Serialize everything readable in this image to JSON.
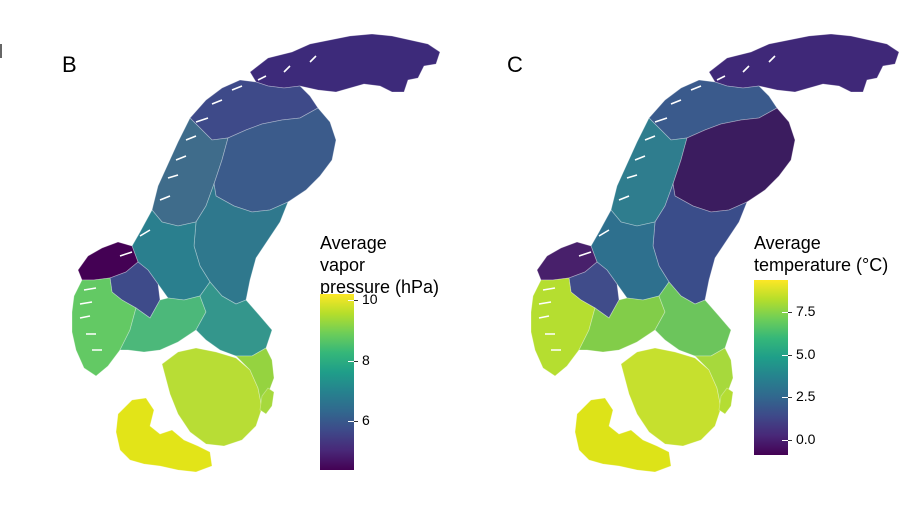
{
  "panels": [
    {
      "letter": "B",
      "legend_title_lines": [
        "Average",
        "vapor",
        "pressure (hPa)"
      ],
      "legend_ticks": [
        "10",
        "8",
        "6"
      ],
      "legend_tick_values": [
        10,
        8,
        6
      ],
      "scale_range": [
        4.4,
        10.2
      ],
      "region_colors": {
        "finnmark": "#3d2a7a",
        "troms": "#3e4a89",
        "nordland": "#3f6c8b",
        "north_sweden": "#3b5b8b",
        "mid_sweden": "#2f788d",
        "inner_norway": "#2a7f8e",
        "west_coast_fjord": "#440154",
        "inland_mountain": "#3e4b8a",
        "south_norway_west": "#63c964",
        "south_norway_east": "#4cb87a",
        "oslo_region": "#34968c",
        "south_sweden": "#b8dd35",
        "stockholm_region": "#95d340",
        "gotland": "#a6d93d",
        "denmark": "#e2e418"
      }
    },
    {
      "letter": "C",
      "legend_title_lines": [
        "Average",
        "temperature (°C)"
      ],
      "legend_ticks": [
        "7.5",
        "5.0",
        "2.5",
        "0.0"
      ],
      "legend_tick_values": [
        7.5,
        5.0,
        2.5,
        0.0
      ],
      "scale_range": [
        -0.9,
        9.4
      ],
      "region_colors": {
        "finnmark": "#3f2878",
        "troms": "#3a5a8c",
        "nordland": "#2f7d8e",
        "north_sweden": "#3b1c5f",
        "mid_sweden": "#3a4d8a",
        "inner_norway": "#2e708e",
        "west_coast_fjord": "#48206b",
        "inland_mountain": "#404c8a",
        "south_norway_west": "#b5de30",
        "south_norway_east": "#82cd49",
        "oslo_region": "#6cc55c",
        "south_sweden": "#c6e02e",
        "stockholm_region": "#a7d93c",
        "gotland": "#b4dd33",
        "denmark": "#dde318"
      }
    }
  ]
}
